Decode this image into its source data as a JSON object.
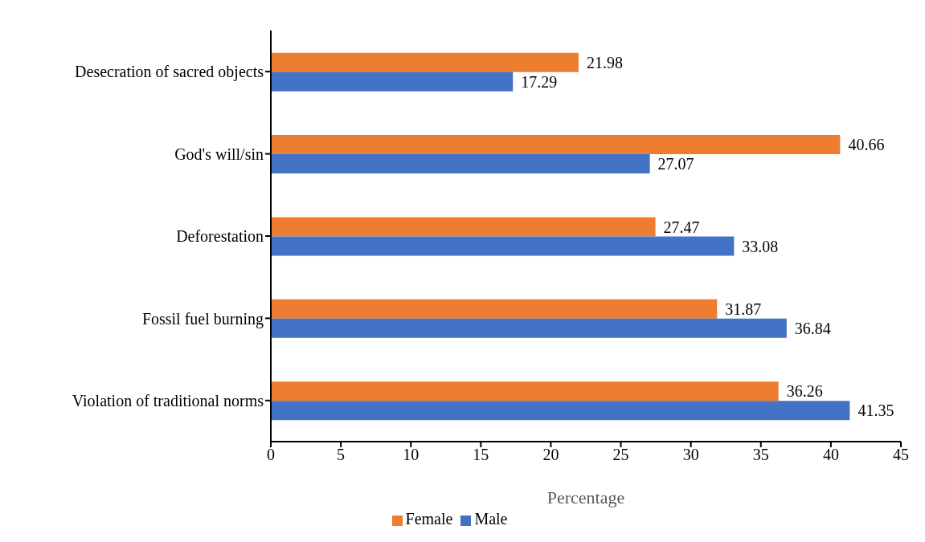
{
  "chart_data": {
    "type": "bar",
    "orientation": "horizontal",
    "xlabel": "Percentage",
    "categories": [
      "Desecration of sacred objects",
      "God's will/sin",
      "Deforestation",
      "Fossil fuel burning",
      "Violation of traditional norms"
    ],
    "series": [
      {
        "name": "Female",
        "color": "#ed7d31",
        "values": [
          21.98,
          40.66,
          27.47,
          31.87,
          36.26
        ]
      },
      {
        "name": "Male",
        "color": "#4472c4",
        "values": [
          17.29,
          27.07,
          33.08,
          36.84,
          41.35
        ]
      }
    ],
    "xlim": [
      0,
      45
    ],
    "xticks": [
      0,
      5,
      10,
      15,
      20,
      25,
      30,
      35,
      40,
      45
    ],
    "data_labels": true,
    "grid": false,
    "legend": "bottom"
  }
}
